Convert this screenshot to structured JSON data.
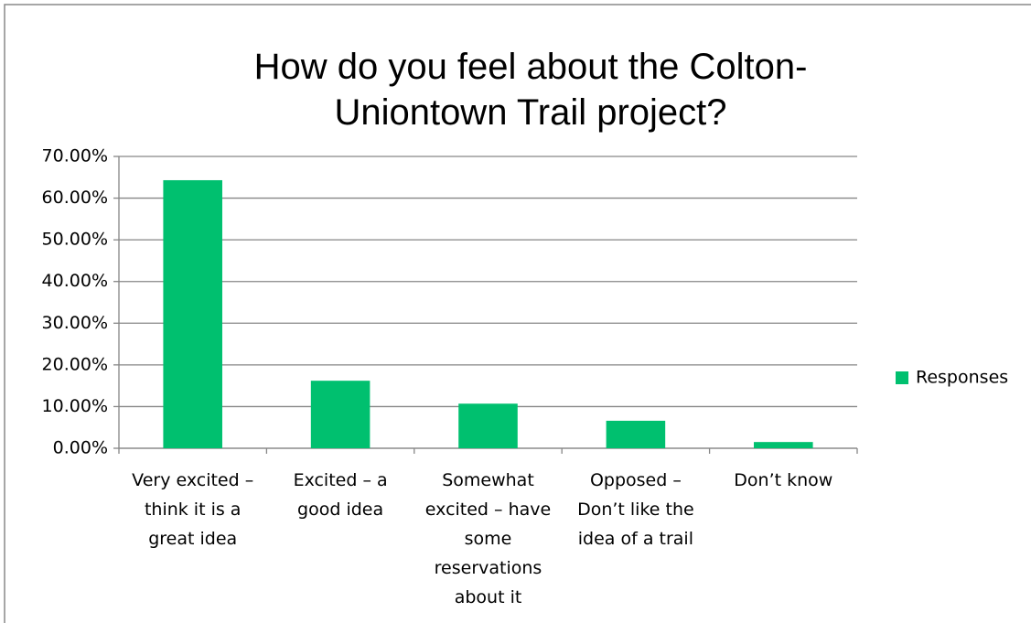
{
  "chart_data": {
    "type": "bar",
    "title": "How do you feel about the Colton-Uniontown Trail project?",
    "categories": [
      "Very excited – think it is a great idea",
      "Excited – a good idea",
      "Somewhat excited – have some reservations about it",
      "Opposed – Don’t like the idea of a trail",
      "Don’t know"
    ],
    "series": [
      {
        "name": "Responses",
        "color": "#00c06f",
        "values": [
          64.3,
          16.2,
          10.7,
          6.6,
          1.5
        ]
      }
    ],
    "ylim": [
      0,
      70
    ],
    "yticks": [
      {
        "value": 0,
        "label": "0.00%"
      },
      {
        "value": 10,
        "label": "10.00%"
      },
      {
        "value": 20,
        "label": "20.00%"
      },
      {
        "value": 30,
        "label": "30.00%"
      },
      {
        "value": 40,
        "label": "40.00%"
      },
      {
        "value": 50,
        "label": "50.00%"
      },
      {
        "value": 60,
        "label": "60.00%"
      },
      {
        "value": 70,
        "label": "70.00%"
      }
    ],
    "grid": true,
    "legend": "right"
  }
}
